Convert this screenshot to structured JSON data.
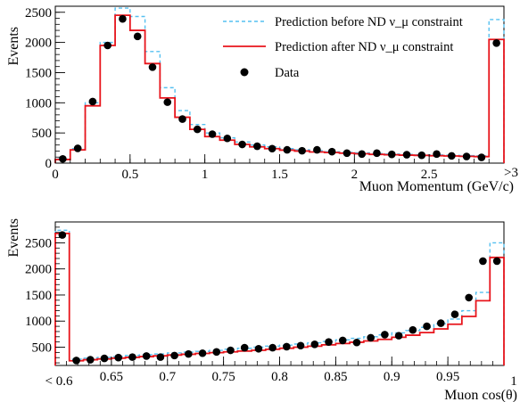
{
  "chart_data": [
    {
      "type": "line",
      "step": true,
      "xlabel": "Muon Momentum (GeV/c)",
      "ylabel": "Events",
      "xlim": [
        0,
        3
      ],
      "ylim": [
        0,
        2600
      ],
      "xticks": [
        0,
        0.5,
        1,
        1.5,
        2,
        2.5
      ],
      "xtick_labels": [
        "0",
        "0.5",
        "1",
        "1.5",
        "2",
        "2.5"
      ],
      "overflow_label": ">3",
      "yticks": [
        0,
        500,
        1000,
        1500,
        2000,
        2500
      ],
      "ytick_labels": [
        "0",
        "500",
        "1000",
        "1500",
        "2000",
        "2500"
      ],
      "bin_edges": [
        0.0,
        0.1,
        0.2,
        0.3,
        0.4,
        0.5,
        0.6,
        0.7,
        0.8,
        0.9,
        1.0,
        1.1,
        1.2,
        1.3,
        1.4,
        1.5,
        1.6,
        1.7,
        1.8,
        1.9,
        2.0,
        2.1,
        2.2,
        2.3,
        2.4,
        2.5,
        2.6,
        2.7,
        2.8,
        2.9,
        3.0
      ],
      "series": [
        {
          "name": "Prediction before ND ν_μ constraint",
          "style": "dashed",
          "color": "#55c0f0",
          "values": [
            70,
            240,
            1000,
            2000,
            2570,
            2430,
            1850,
            1250,
            870,
            640,
            500,
            420,
            350,
            300,
            270,
            240,
            220,
            205,
            190,
            180,
            170,
            160,
            150,
            145,
            140,
            135,
            130,
            125,
            120,
            2380
          ]
        },
        {
          "name": "Prediction after ND ν_μ constraint",
          "style": "solid",
          "color": "#e8141b",
          "values": [
            60,
            220,
            950,
            1950,
            2450,
            2200,
            1650,
            1080,
            760,
            560,
            440,
            380,
            310,
            270,
            240,
            215,
            200,
            185,
            175,
            165,
            155,
            145,
            138,
            132,
            128,
            123,
            118,
            113,
            108,
            2050
          ]
        }
      ],
      "data_points": {
        "name": "Data",
        "x": [
          0.05,
          0.15,
          0.25,
          0.35,
          0.45,
          0.55,
          0.65,
          0.75,
          0.85,
          0.95,
          1.05,
          1.15,
          1.25,
          1.35,
          1.45,
          1.55,
          1.65,
          1.75,
          1.85,
          1.95,
          2.05,
          2.15,
          2.25,
          2.35,
          2.45,
          2.55,
          2.65,
          2.75,
          2.85,
          2.95
        ],
        "y": [
          70,
          245,
          1020,
          1950,
          2390,
          2100,
          1590,
          1010,
          730,
          560,
          480,
          410,
          310,
          280,
          240,
          220,
          205,
          220,
          190,
          165,
          150,
          165,
          145,
          140,
          130,
          150,
          120,
          110,
          95,
          1990
        ]
      }
    },
    {
      "type": "line",
      "step": true,
      "xlabel": "Muon cos(θ)",
      "ylabel": "Events",
      "xlim": [
        0.6,
        1.0
      ],
      "ylim": [
        150,
        2900
      ],
      "xticks": [
        0.65,
        0.7,
        0.75,
        0.8,
        0.85,
        0.9,
        0.95
      ],
      "xtick_labels": [
        "0.65",
        "0.7",
        "0.75",
        "0.8",
        "0.85",
        "0.9",
        "0.95"
      ],
      "first_tick_label": "< 0.6",
      "last_tick_label": "1",
      "yticks": [
        500,
        1000,
        1500,
        2000,
        2500
      ],
      "ytick_labels": [
        "500",
        "1000",
        "1500",
        "2000",
        "2500"
      ],
      "bin_edges": [
        0.6,
        0.6125,
        0.625,
        0.6375,
        0.65,
        0.6625,
        0.675,
        0.6875,
        0.7,
        0.7125,
        0.725,
        0.7375,
        0.75,
        0.7625,
        0.775,
        0.7875,
        0.8,
        0.8125,
        0.825,
        0.8375,
        0.85,
        0.8625,
        0.875,
        0.8875,
        0.9,
        0.9125,
        0.925,
        0.9375,
        0.95,
        0.9625,
        0.975,
        0.9875,
        1.0
      ],
      "series": [
        {
          "name": "Prediction before ND ν_μ constraint",
          "style": "dashed",
          "color": "#55c0f0",
          "values": [
            2740,
            270,
            290,
            305,
            320,
            340,
            355,
            370,
            390,
            405,
            420,
            440,
            460,
            480,
            500,
            520,
            540,
            560,
            585,
            610,
            640,
            670,
            700,
            735,
            775,
            820,
            880,
            950,
            1040,
            1200,
            1550,
            2500
          ]
        },
        {
          "name": "Prediction after ND ν_μ constraint",
          "style": "solid",
          "color": "#e8141b",
          "values": [
            2680,
            240,
            260,
            275,
            290,
            305,
            320,
            335,
            350,
            365,
            380,
            395,
            410,
            425,
            440,
            460,
            480,
            500,
            520,
            545,
            570,
            595,
            620,
            650,
            690,
            730,
            780,
            850,
            940,
            1090,
            1390,
            2220
          ]
        }
      ],
      "data_points": {
        "name": "Data",
        "x": [
          0.60625,
          0.61875,
          0.63125,
          0.64375,
          0.65625,
          0.66875,
          0.68125,
          0.69375,
          0.70625,
          0.71875,
          0.73125,
          0.74375,
          0.75625,
          0.76875,
          0.78125,
          0.79375,
          0.80625,
          0.81875,
          0.83125,
          0.84375,
          0.85625,
          0.86875,
          0.88125,
          0.89375,
          0.90625,
          0.91875,
          0.93125,
          0.94375,
          0.95625,
          0.96875,
          0.98125,
          0.99375
        ],
        "y": [
          2650,
          245,
          260,
          285,
          300,
          310,
          330,
          310,
          340,
          370,
          385,
          410,
          440,
          490,
          470,
          490,
          510,
          530,
          555,
          600,
          630,
          590,
          680,
          740,
          720,
          830,
          900,
          960,
          1130,
          1450,
          2150,
          2150
        ]
      }
    }
  ]
}
